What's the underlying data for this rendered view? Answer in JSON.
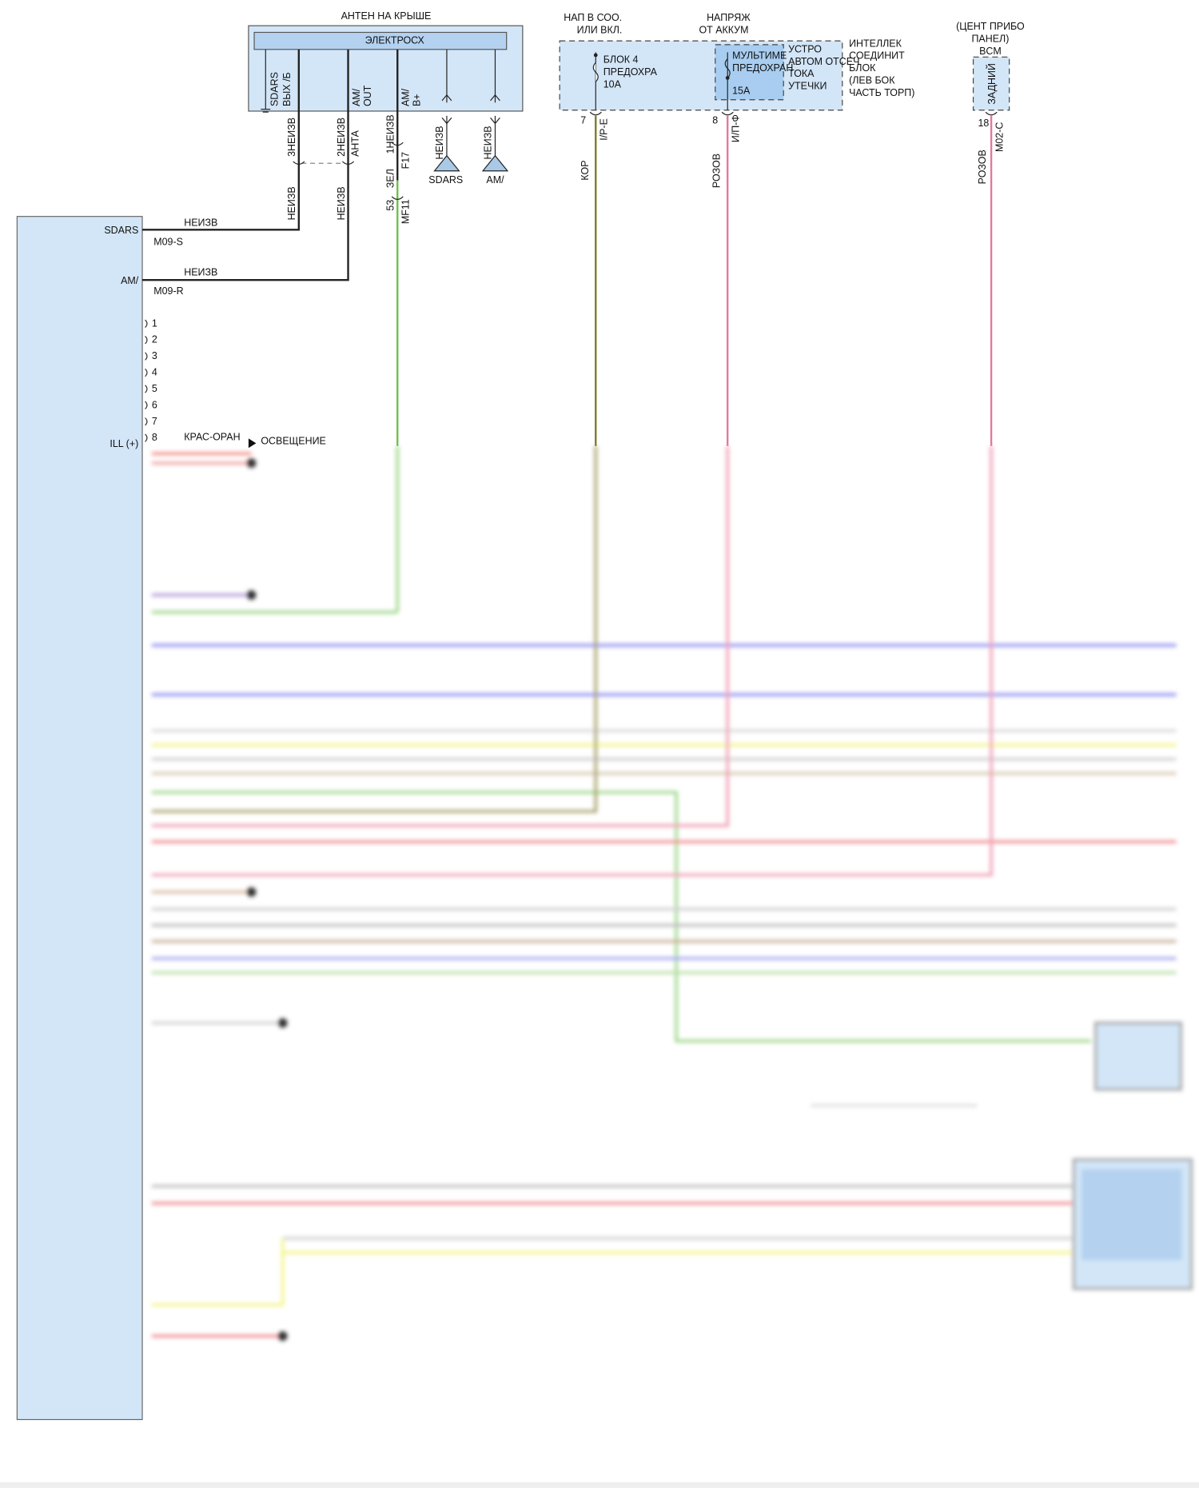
{
  "antenna": {
    "title": "АНТЕН НА КРЫШЕ",
    "module": "ЭЛЕКТРОСХ",
    "pins": [
      [
        "SDARS",
        "ВЫХ /Б"
      ],
      [
        "AM/",
        "OUT"
      ],
      [
        "AM/",
        "B+"
      ]
    ],
    "wires": [
      {
        "pin": "3НЕИЗВ",
        "color": "НЕИЗВ"
      },
      {
        "pin": "2НЕИЗВ",
        "label": "АНТА",
        "color": "НЕИЗВ"
      },
      {
        "pin": "1НЕИЗВ",
        "connector": "F17",
        "color": "ЗЕЛ",
        "pin2": "53",
        "connector2": "MF11"
      }
    ],
    "grounds": [
      {
        "wire": "НЕИЗВ",
        "label": "SDARS"
      },
      {
        "wire": "НЕИЗВ",
        "label": "AM/"
      }
    ]
  },
  "radio": {
    "pins": [
      {
        "name": "SDARS",
        "wire": "НЕИЗВ",
        "connector": "M09-S"
      },
      {
        "name": "AM/",
        "wire": "НЕИЗВ",
        "connector": "M09-R"
      }
    ],
    "pin_numbers": [
      "1",
      "2",
      "3",
      "4",
      "5",
      "6",
      "7",
      "8"
    ],
    "ill": {
      "name": "ILL (+)",
      "wire": "КРАС-ОРАН",
      "dest": "ОСВЕЩЕНИЕ"
    }
  },
  "fuse_box": {
    "supply1": [
      "НАП В СОО.",
      "ИЛИ ВКЛ."
    ],
    "fuse1": [
      "БЛОК 4",
      "ПРЕДОХРА",
      "10А"
    ],
    "pin1": "7",
    "conn1": "I/P-E",
    "wire1": "КОР",
    "supply2": [
      "НАПРЯЖ",
      "ОТ АККУМ"
    ],
    "fuse2": [
      "МУЛЬТИМЕ",
      "ПРЕДОХРАН"
    ],
    "fuse2_rating": "15А",
    "device": [
      "УСТРО",
      "АВТОМ ОТСЕЧ",
      "ТОКА",
      "УТЕЧКИ"
    ],
    "name": [
      "ИНТЕЛЛЕК",
      "СОЕДИНИТ",
      "БЛОК",
      "(ЛЕВ БОК",
      "ЧАСТЬ ТОРП)"
    ],
    "pin2": "8",
    "conn2": "И/П-Ф",
    "wire2": "РОЗОВ"
  },
  "bcm": {
    "name": [
      "(ЦЕНТ ПРИБО",
      "ПАНЕЛ)",
      "BCM"
    ],
    "label": "ЗАДНИЙ",
    "pin": "18",
    "connector": "M02-C",
    "wire": "РОЗОВ"
  }
}
